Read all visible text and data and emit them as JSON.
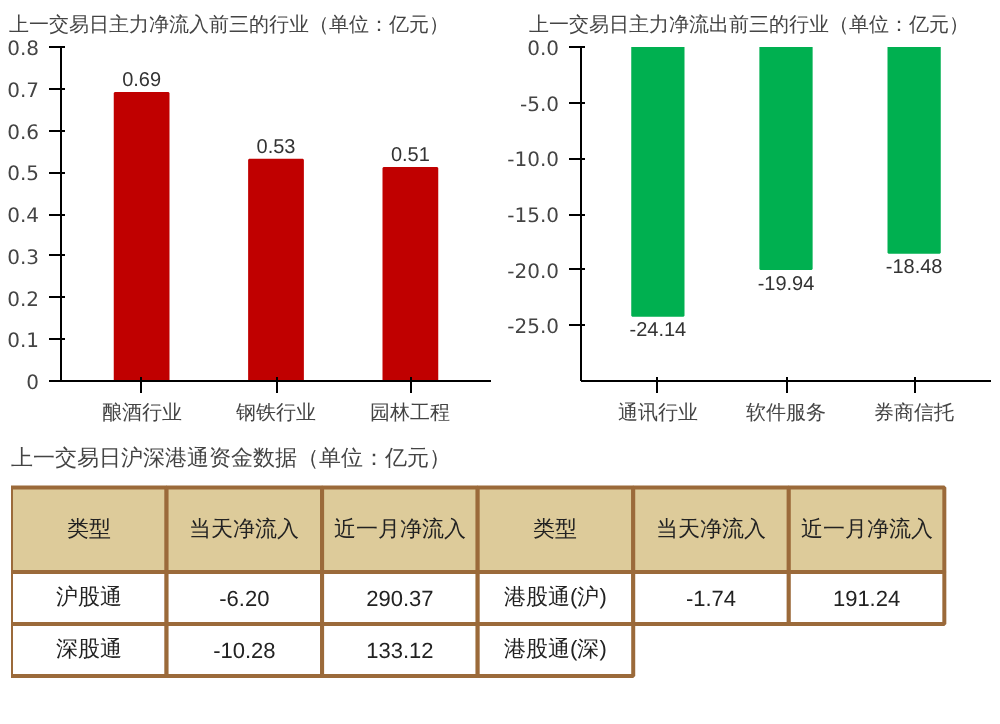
{
  "chart_data": [
    {
      "type": "bar",
      "title": "上一交易日主力净流入前三的行业（单位：亿元）",
      "categories": [
        "酿酒行业",
        "钢铁行业",
        "园林工程"
      ],
      "values": [
        0.69,
        0.53,
        0.51
      ],
      "color": "#c00000",
      "ylim": [
        0,
        0.8
      ],
      "yticks": [
        0,
        0.1,
        0.2,
        0.3,
        0.4,
        0.5,
        0.6,
        0.7,
        0.8
      ],
      "data_labels": true
    },
    {
      "type": "bar",
      "title": "上一交易日主力净流出前三的行业（单位：亿元）",
      "categories": [
        "通讯行业",
        "软件服务",
        "券商信托"
      ],
      "values": [
        -24.14,
        -19.94,
        -18.48
      ],
      "color": "#00b050",
      "ylim": [
        -30,
        0
      ],
      "yticks": [
        {
          "value": 0,
          "label": "0.0"
        },
        {
          "value": -5,
          "label": "-5.0"
        },
        {
          "value": -10,
          "label": "-10.0"
        },
        {
          "value": -15,
          "label": "-15.0"
        },
        {
          "value": -20,
          "label": "-20.0"
        },
        {
          "value": -25,
          "label": "-25.0"
        }
      ],
      "data_labels": true
    },
    {
      "type": "other",
      "title": "上一交易日沪深港通资金数据（单位：亿元）",
      "annotations": [
        "类型",
        "当天净流入",
        "近一月净流入",
        "类型",
        "当天净流入",
        "近一月净流入",
        "沪股通",
        "-6.20",
        "290.37",
        "港股通(沪)",
        "-1.74",
        "191.24",
        "深股通",
        "-10.28",
        "133.12",
        "港股通(深)"
      ]
    }
  ]
}
